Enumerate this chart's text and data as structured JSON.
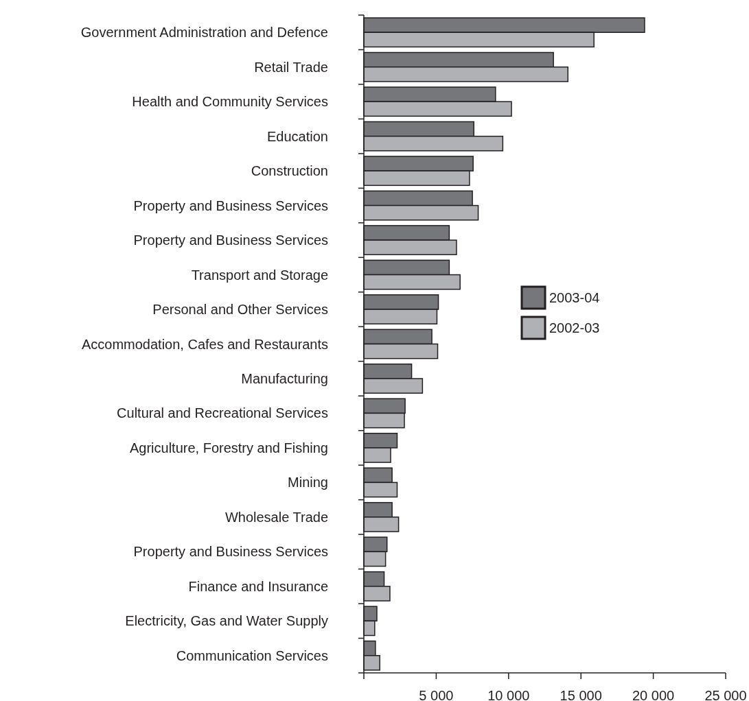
{
  "chart_data": {
    "type": "bar",
    "orientation": "horizontal",
    "categories": [
      "Government Administration and Defence",
      "Retail Trade",
      "Health and Community Services",
      "Education",
      "Construction",
      "Property and Business Services",
      "Property and Business Services",
      "Transport and Storage",
      "Personal and Other Services",
      "Accommodation, Cafes and Restaurants",
      "Manufacturing",
      "Cultural and Recreational Services",
      "Agriculture, Forestry and Fishing",
      "Mining",
      "Wholesale Trade",
      "Property and Business Services",
      "Finance and Insurance",
      "Electricity, Gas and Water Supply",
      "Communication Services"
    ],
    "series": [
      {
        "name": "2003-04",
        "color": "#76777b",
        "values": [
          19400,
          13100,
          9100,
          7600,
          7550,
          7500,
          5900,
          5900,
          5150,
          4700,
          3300,
          2850,
          2300,
          1950,
          1950,
          1600,
          1400,
          900,
          800
        ]
      },
      {
        "name": "2002-03",
        "color": "#b0b1b5",
        "values": [
          15900,
          14100,
          10200,
          9600,
          7300,
          7900,
          6400,
          6650,
          5050,
          5100,
          4050,
          2800,
          1850,
          2300,
          2400,
          1500,
          1800,
          750,
          1100
        ]
      }
    ],
    "xlim": [
      0,
      25000
    ],
    "xticks": [
      {
        "value": 0,
        "label": null
      },
      {
        "value": 5000,
        "label": "5 000"
      },
      {
        "value": 10000,
        "label": "10 000"
      },
      {
        "value": 15000,
        "label": "15 000"
      },
      {
        "value": 20000,
        "label": "20 000"
      },
      {
        "value": 25000,
        "label": "25 000"
      }
    ],
    "legend": "right",
    "grid": false
  }
}
